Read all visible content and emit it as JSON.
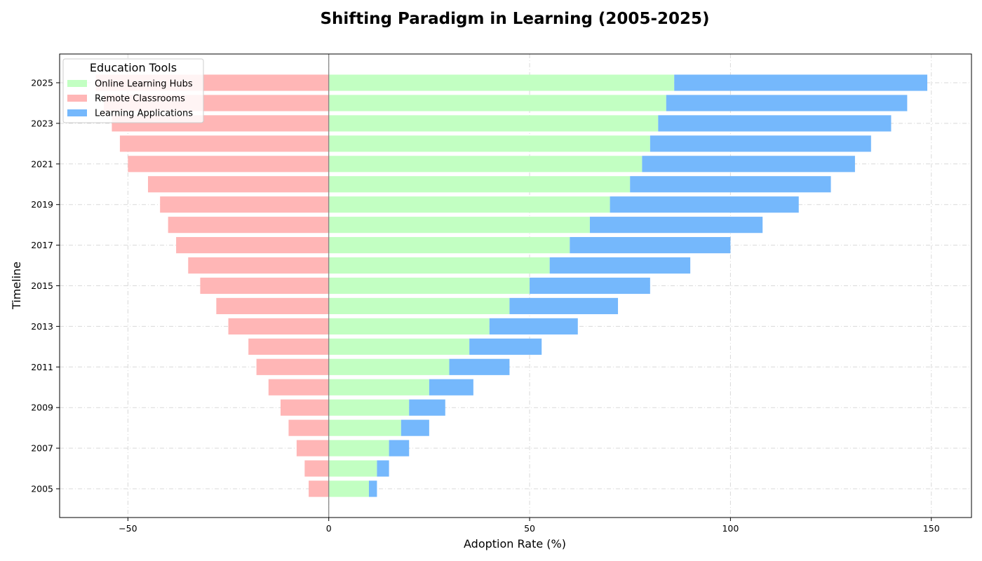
{
  "chart_data": {
    "type": "bar",
    "orientation": "horizontal",
    "title": "Shifting Paradigm in Learning (2005-2025)",
    "xlabel": "Adoption Rate (%)",
    "ylabel": "Timeline",
    "xlim": [
      -67,
      160
    ],
    "xticks": [
      -50,
      0,
      50,
      100,
      150
    ],
    "xtick_labels": [
      "−50",
      "0",
      "50",
      "100",
      "150"
    ],
    "years": [
      2005,
      2006,
      2007,
      2008,
      2009,
      2010,
      2011,
      2012,
      2013,
      2014,
      2015,
      2016,
      2017,
      2018,
      2019,
      2020,
      2021,
      2022,
      2023,
      2024,
      2025
    ],
    "ytick_labels": [
      "2005",
      "2007",
      "2009",
      "2011",
      "2013",
      "2015",
      "2017",
      "2019",
      "2021",
      "2023",
      "2025"
    ],
    "grid": true,
    "legend": {
      "title": "Education Tools",
      "placement": "top-left"
    },
    "series": [
      {
        "name": "Online Learning Hubs",
        "color": "#c2ffc2",
        "values": [
          10,
          12,
          15,
          18,
          20,
          25,
          30,
          35,
          40,
          45,
          50,
          55,
          60,
          65,
          70,
          75,
          78,
          80,
          82,
          84,
          86
        ]
      },
      {
        "name": "Remote Classrooms",
        "color": "#ffb6b6",
        "values": [
          -5,
          -6,
          -8,
          -10,
          -12,
          -15,
          -18,
          -20,
          -25,
          -28,
          -32,
          -35,
          -38,
          -40,
          -42,
          -45,
          -50,
          -52,
          -54,
          -56,
          -58
        ]
      },
      {
        "name": "Learning Applications",
        "color": "#75b8fc",
        "values": [
          2,
          3,
          5,
          7,
          9,
          11,
          15,
          18,
          22,
          27,
          30,
          35,
          40,
          43,
          47,
          50,
          53,
          55,
          58,
          60,
          63
        ]
      }
    ]
  }
}
